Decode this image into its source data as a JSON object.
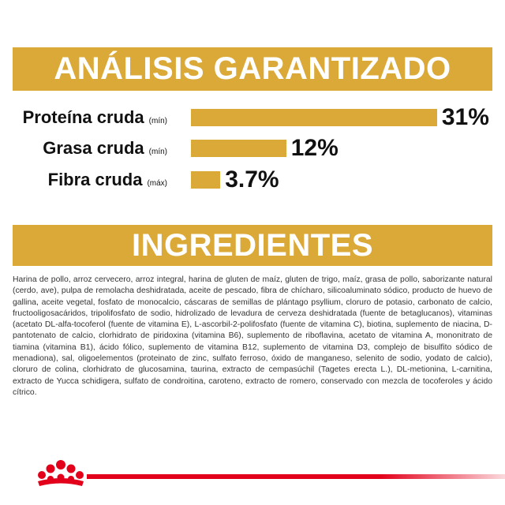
{
  "analysis": {
    "title": "ANÁLISIS GARANTIZADO",
    "accent_color": "#dba937",
    "rows": [
      {
        "name": "Proteína cruda",
        "qualifier": "(mín)",
        "value": "31%",
        "percent": 31
      },
      {
        "name": "Grasa cruda",
        "qualifier": "(mín)",
        "value": "12%",
        "percent": 12
      },
      {
        "name": "Fibra cruda",
        "qualifier": "(máx)",
        "value": "3.7%",
        "percent": 3.7
      }
    ]
  },
  "ingredients": {
    "title": "INGREDIENTES",
    "text": "Harina de pollo, arroz cervecero, arroz integral, harina de gluten de maíz, gluten de trigo, maíz, grasa de pollo, saborizante natural (cerdo, ave), pulpa de remolacha deshidratada, aceite de pescado, fibra de chícharo, silicoaluminato sódico, producto de huevo de gallina, aceite vegetal, fosfato de monocalcio, cáscaras de semillas de plántago psyllium, cloruro de potasio, carbonato de calcio, fructooligosacáridos, tripolifosfato de sodio, hidrolizado de levadura de cerveza deshidratada (fuente de betaglucanos), vitaminas (acetato DL-alfa-tocoferol (fuente de vitamina E), L-ascorbil-2-polifosfato (fuente de vitamina C), biotina, suplemento de niacina, D-pantotenato de calcio, clorhidrato de piridoxina (vitamina B6), suplemento de riboflavina, acetato de vitamina A, mononitrato de tiamina (vitamina B1), ácido fólico, suplemento de vitamina B12, suplemento de vitamina D3, complejo de bisulfito sódico de menadiona), sal, oligoelementos (proteinato de zinc, sulfato ferroso, óxido de manganeso, selenito de sodio, yodato de calcio), cloruro de colina, clorhidrato de glucosamina, taurina, extracto de cempasúchil (Tagetes erecta L.), DL-metionina, L-carnitina, extracto de Yucca schidigera, sulfato de condroitina, caroteno, extracto de romero, conservado con mezcla de tocoferoles y ácido cítrico."
  },
  "footer": {
    "brand_color": "#e2001a",
    "logo_icon": "crown-icon"
  }
}
